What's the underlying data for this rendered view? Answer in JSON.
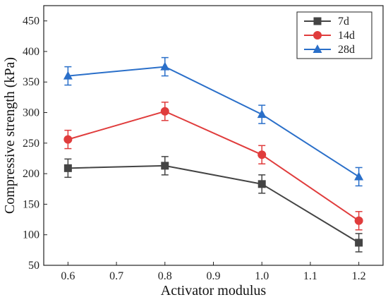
{
  "chart_data": {
    "type": "line",
    "xlabel": "Activator modulus",
    "ylabel": "Compressive strength (kPa)",
    "xlim": [
      0.55,
      1.25
    ],
    "ylim": [
      50,
      475
    ],
    "x_ticks": [
      0.6,
      0.7,
      0.8,
      0.9,
      1.0,
      1.1,
      1.2
    ],
    "x_tick_labels": [
      "0.6",
      "0.7",
      "0.8",
      "0.9",
      "1.0",
      "1.1",
      "1.2"
    ],
    "y_ticks": [
      50,
      100,
      150,
      200,
      250,
      300,
      350,
      400,
      450
    ],
    "y_tick_labels": [
      "50",
      "100",
      "150",
      "200",
      "250",
      "300",
      "350",
      "400",
      "450"
    ],
    "x": [
      0.6,
      0.8,
      1.0,
      1.2
    ],
    "legend_position": "top-right",
    "grid": false,
    "series": [
      {
        "name": "7d",
        "marker": "square",
        "color": "#444444",
        "values": [
          209,
          213,
          183,
          87
        ],
        "errors": [
          15,
          15,
          15,
          15
        ]
      },
      {
        "name": "14d",
        "marker": "circle",
        "color": "#e03c3c",
        "values": [
          256,
          302,
          231,
          123
        ],
        "errors": [
          15,
          15,
          15,
          15
        ]
      },
      {
        "name": "28d",
        "marker": "triangle",
        "color": "#2a6fc9",
        "values": [
          360,
          375,
          297,
          195
        ],
        "errors": [
          15,
          15,
          15,
          15
        ]
      }
    ]
  }
}
